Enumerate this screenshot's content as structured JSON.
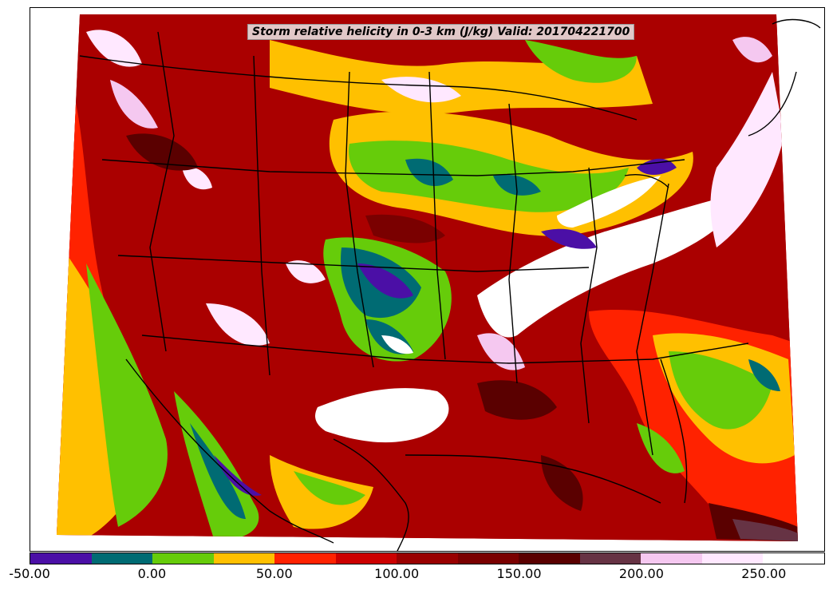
{
  "title": "Storm relative helicity in 0-3 km (J/kg) Valid: 201704221700",
  "colorbar": {
    "colors": [
      "#4b0fa6",
      "#006b73",
      "#66cc0a",
      "#ffc000",
      "#ff2200",
      "#cc0000",
      "#990000",
      "#7a0000",
      "#5a0000",
      "#663344",
      "#f5c8f0",
      "#ffe8ff",
      "#ffffff"
    ],
    "min": -50,
    "max": 275,
    "ticks": [
      "-50.00",
      "0.00",
      "50.00",
      "100.00",
      "150.00",
      "200.00",
      "250.00"
    ],
    "tick_values": [
      -50,
      0,
      50,
      100,
      150,
      200,
      250
    ]
  }
}
